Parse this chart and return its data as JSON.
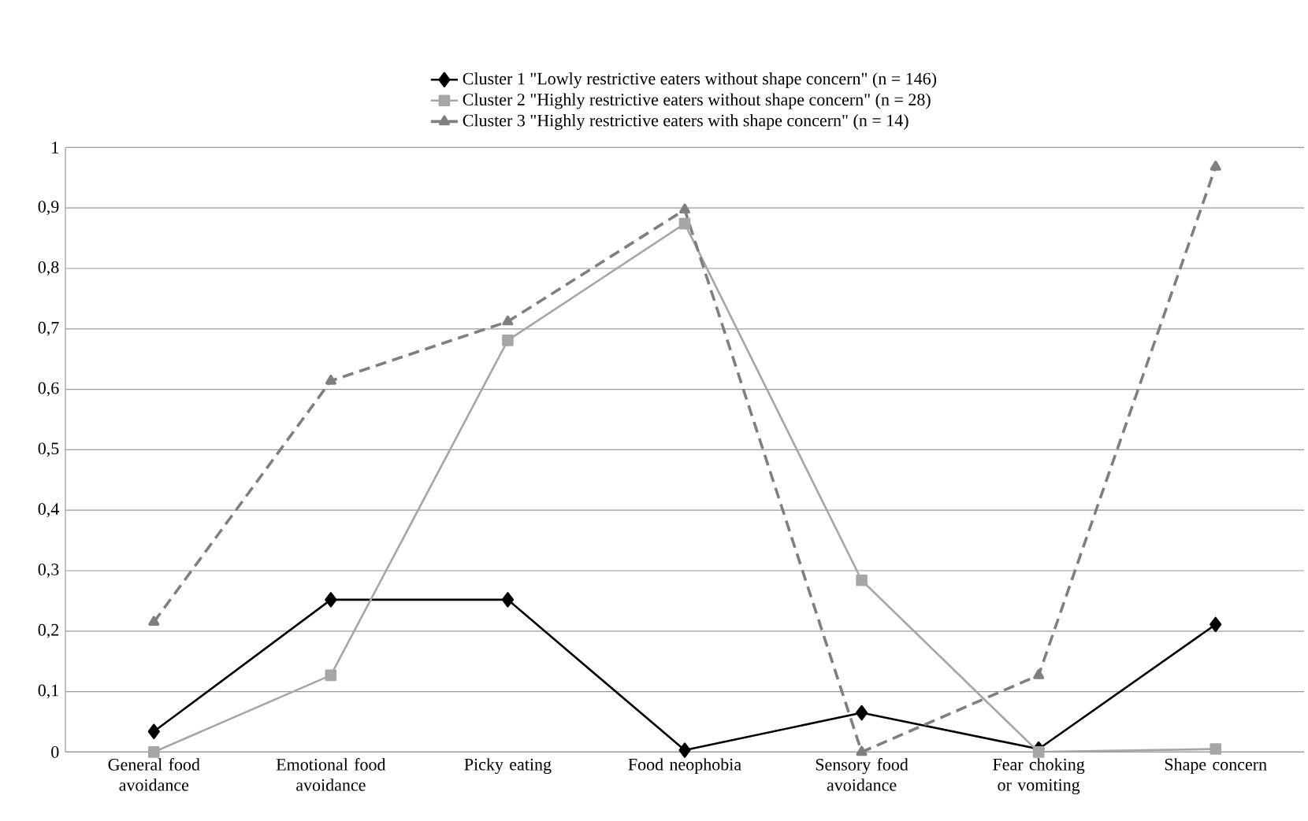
{
  "chart_data": {
    "type": "line",
    "categories": [
      "General food avoidance",
      "Emotional food avoidance",
      "Picky eating",
      "Food neophobia",
      "Sensory food avoidance",
      "Fear choking or vomiting",
      "Shape concern"
    ],
    "series": [
      {
        "name": "Cluster 1 \"Lowly restrictive eaters without shape concern\" (n = 146)",
        "color": "#000000",
        "marker": "diamond",
        "line_style": "solid",
        "values": [
          0.034,
          0.252,
          0.252,
          0.003,
          0.065,
          0.005,
          0.211
        ]
      },
      {
        "name": "Cluster 2 \"Highly restrictive eaters without shape concern\" (n = 28)",
        "color": "#a6a6a6",
        "marker": "square",
        "line_style": "solid",
        "values": [
          0,
          0.127,
          0.681,
          0.874,
          0.284,
          0,
          0.005
        ]
      },
      {
        "name": "Cluster 3 \"Highly restrictive eaters with shape concern\" (n = 14)",
        "color": "#7f7f7f",
        "marker": "triangle",
        "line_style": "dashed",
        "values": [
          0.215,
          0.614,
          0.712,
          0.897,
          0,
          0.127,
          0.968
        ]
      }
    ],
    "ylim": [
      0,
      1
    ],
    "yticks": [
      0,
      {
        "value": 0.1,
        "label": "0,1"
      },
      {
        "value": 0.2,
        "label": "0,2"
      },
      {
        "value": 0.3,
        "label": "0,3"
      },
      {
        "value": 0.4,
        "label": "0,4"
      },
      {
        "value": 0.5,
        "label": "0,5"
      },
      {
        "value": 0.6,
        "label": "0,6"
      },
      {
        "value": 0.7,
        "label": "0,7"
      },
      {
        "value": 0.8,
        "label": "0,8"
      },
      {
        "value": 0.9,
        "label": "0,9"
      },
      1
    ],
    "grid": "y",
    "legend": "top"
  }
}
